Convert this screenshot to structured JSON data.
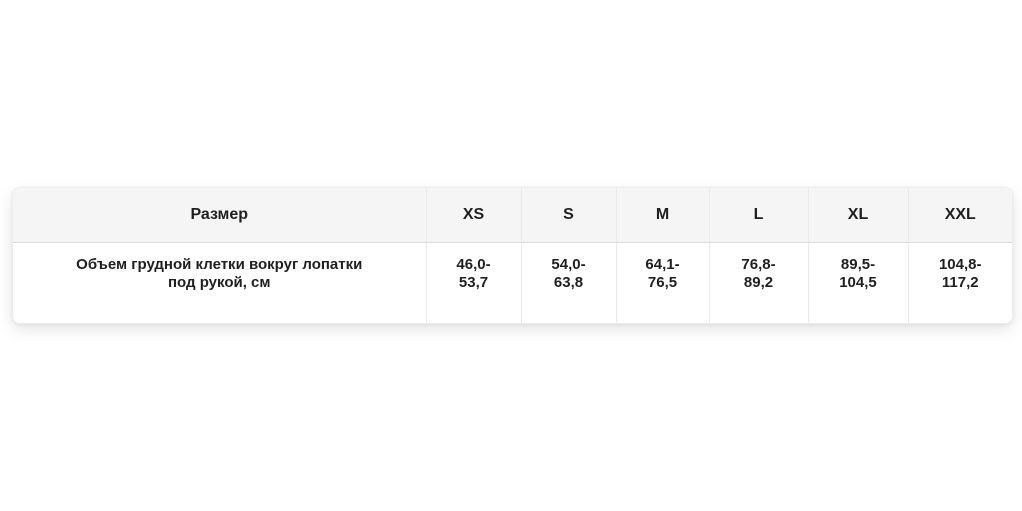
{
  "table": {
    "header": {
      "label": "Размер",
      "sizes": [
        "XS",
        "S",
        "M",
        "L",
        "XL",
        "XXL"
      ]
    },
    "row": {
      "label": "Объем грудной клетки вокруг лопатки\nпод рукой, см",
      "values": [
        "46,0-\n53,7",
        "54,0-\n63,8",
        "64,1-\n76,5",
        "76,8-\n89,2",
        "89,5-\n104,5",
        "104,8-\n117,2"
      ]
    }
  },
  "colors": {
    "header_background": "#f5f5f5",
    "row_background": "#ffffff",
    "column_border": "#e9e9e9",
    "header_divider": "#d9d9d9",
    "text": "#1f1f1f"
  }
}
